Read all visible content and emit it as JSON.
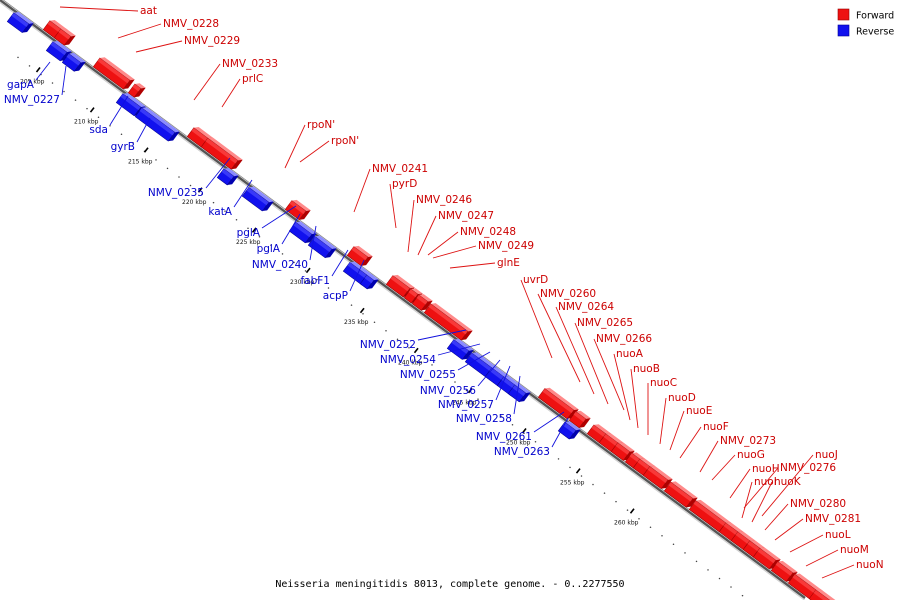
{
  "caption": "Neisseria meningitidis 8013, complete genome. - 0..2277550",
  "legend": [
    {
      "label": "Forward",
      "color": "#ee1111"
    },
    {
      "label": "Reverse",
      "color": "#1111ee"
    }
  ],
  "ticks": [
    {
      "label": "205 kbp",
      "kbp": 205
    },
    {
      "label": "210 kbp",
      "kbp": 210
    },
    {
      "label": "215 kbp",
      "kbp": 215
    },
    {
      "label": "220 kbp",
      "kbp": 220
    },
    {
      "label": "225 kbp",
      "kbp": 225
    },
    {
      "label": "230 kbp",
      "kbp": 230
    },
    {
      "label": "235 kbp",
      "kbp": 235
    },
    {
      "label": "240 kbp",
      "kbp": 240
    },
    {
      "label": "245 kbp",
      "kbp": 245
    },
    {
      "label": "250 kbp",
      "kbp": 250
    },
    {
      "label": "255 kbp",
      "kbp": 255
    },
    {
      "label": "260 kbp",
      "kbp": 260
    }
  ],
  "forward_labels": [
    "aat",
    "NMV_0228",
    "NMV_0229",
    "NMV_0233",
    "prlC",
    "rpoN'",
    "rpoN'",
    "NMV_0241",
    "pyrD",
    "NMV_0246",
    "NMV_0247",
    "NMV_0248",
    "NMV_0249",
    "glnE",
    "uvrD",
    "NMV_0260",
    "NMV_0264",
    "NMV_0265",
    "NMV_0266",
    "nuoA",
    "nuoB",
    "nuoC",
    "nuoD",
    "nuoE",
    "nuoF",
    "NMV_0273",
    "nuoG",
    "nuoH",
    "NMV_0276",
    "nuoI",
    "nuoK",
    "nuoJ",
    "NMV_0280",
    "NMV_0281",
    "nuoL",
    "nuoM",
    "nuoN"
  ],
  "reverse_labels": [
    "gapA",
    "NMV_0227",
    "sda",
    "gyrB",
    "NMV_0235",
    "katA",
    "pglA",
    "pglA",
    "NMV_0240",
    "fabF1",
    "acpP",
    "NMV_0252",
    "NMV_0254",
    "NMV_0255",
    "NMV_0256",
    "NMV_0257",
    "NMV_0258",
    "NMV_0261",
    "NMV_0263"
  ]
}
